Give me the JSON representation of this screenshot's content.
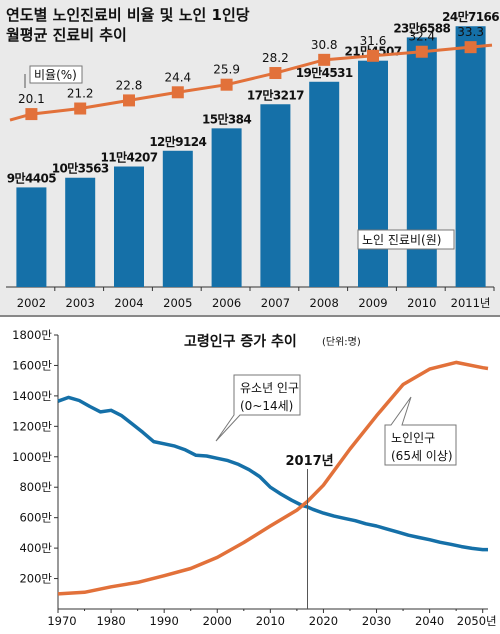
{
  "chart_data": [
    {
      "type": "bar",
      "title": "연도별 노인진료비 비율 및 노인 1인당",
      "subtitle": "월평균 진료비 추이",
      "categories": [
        "2002",
        "2003",
        "2004",
        "2005",
        "2006",
        "2007",
        "2008",
        "2009",
        "2010",
        "2011년"
      ],
      "series": [
        {
          "name": "노인 진료비(원)",
          "values": [
            94405,
            103563,
            114207,
            129124,
            150384,
            173217,
            194531,
            214507,
            236588,
            247166
          ],
          "labels": [
            "9만4405",
            "10만3563",
            "11만4207",
            "12만9124",
            "15만384",
            "17만3217",
            "19만4531",
            "21만4507",
            "23만6588",
            "24만7166"
          ],
          "color": "#1570a8"
        },
        {
          "name": "비율(%)",
          "values": [
            20.1,
            21.2,
            22.8,
            24.4,
            25.9,
            28.2,
            30.8,
            31.6,
            32.4,
            33.3
          ],
          "labels": [
            "20.1",
            "21.2",
            "22.8",
            "24.4",
            "25.9",
            "28.2",
            "30.8",
            "31.6",
            "32.4",
            "33.3"
          ],
          "color": "#e2713a"
        }
      ]
    },
    {
      "type": "line",
      "title": "고령인구 증가 추이",
      "unit": "(단위:명)",
      "x_ticks": [
        "1970",
        "1980",
        "1990",
        "2000",
        "2010",
        "2020",
        "2030",
        "2040",
        "2050년"
      ],
      "y_ticks": [
        "200만",
        "400만",
        "600만",
        "800만",
        "1000만",
        "1200만",
        "1400만",
        "1600만",
        "1800만"
      ],
      "ylim": [
        0,
        18000000
      ],
      "xlim": [
        1970,
        2051
      ],
      "annotation": "2017년",
      "series": [
        {
          "name": "유소년 인구",
          "label_line2": "(0~14세)",
          "color": "#1570a8",
          "x": [
            1970,
            1972,
            1974,
            1976,
            1978,
            1980,
            1982,
            1984,
            1986,
            1988,
            1990,
            1992,
            1994,
            1996,
            1998,
            2000,
            2002,
            2004,
            2006,
            2008,
            2010,
            2012,
            2014,
            2016,
            2017,
            2018,
            2020,
            2022,
            2024,
            2026,
            2028,
            2030,
            2032,
            2034,
            2036,
            2038,
            2040,
            2042,
            2044,
            2046,
            2048,
            2050,
            2051
          ],
          "values": [
            13650000,
            13900000,
            13700000,
            13300000,
            12950000,
            13050000,
            12700000,
            12150000,
            11600000,
            11000000,
            10850000,
            10700000,
            10450000,
            10100000,
            10050000,
            9900000,
            9750000,
            9500000,
            9150000,
            8700000,
            8000000,
            7550000,
            7150000,
            6800000,
            6700000,
            6550000,
            6300000,
            6100000,
            5950000,
            5800000,
            5600000,
            5450000,
            5250000,
            5050000,
            4850000,
            4700000,
            4550000,
            4380000,
            4250000,
            4100000,
            3980000,
            3900000,
            3900000
          ]
        },
        {
          "name": "노인인구",
          "label_line2": "(65세 이상)",
          "color": "#e2713a",
          "x": [
            1970,
            1975,
            1980,
            1985,
            1990,
            1995,
            2000,
            2005,
            2010,
            2015,
            2017,
            2020,
            2025,
            2030,
            2035,
            2040,
            2045,
            2050,
            2051
          ],
          "values": [
            990000,
            1100000,
            1460000,
            1750000,
            2190000,
            2660000,
            3390000,
            4370000,
            5450000,
            6500000,
            7070000,
            8130000,
            10510000,
            12690000,
            14750000,
            15760000,
            16200000,
            15850000,
            15800000
          ]
        }
      ]
    }
  ]
}
